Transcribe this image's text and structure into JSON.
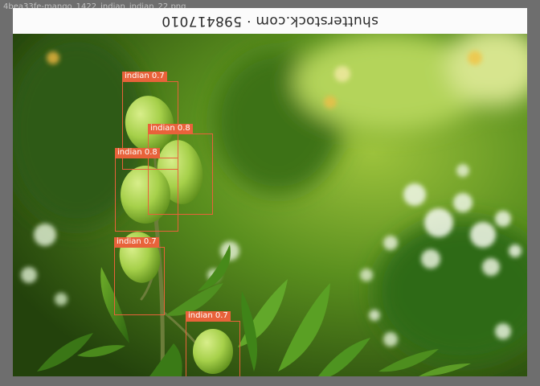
{
  "image": {
    "filename": "4bea33fe-mango_1422_indian_indian_22.png",
    "watermark": "shutterstock.com · 598417010"
  },
  "detections": [
    {
      "label": "indian 0.7"
    },
    {
      "label": "indian 0.8"
    },
    {
      "label": "indian 0.8"
    },
    {
      "label": "indian 0.7"
    },
    {
      "label": "indian 0.7"
    }
  ],
  "colors": {
    "box": "#e8623a",
    "mango": "#a8d24a",
    "foliage": "#3f7a18",
    "bokeh": "#eef6e4"
  }
}
